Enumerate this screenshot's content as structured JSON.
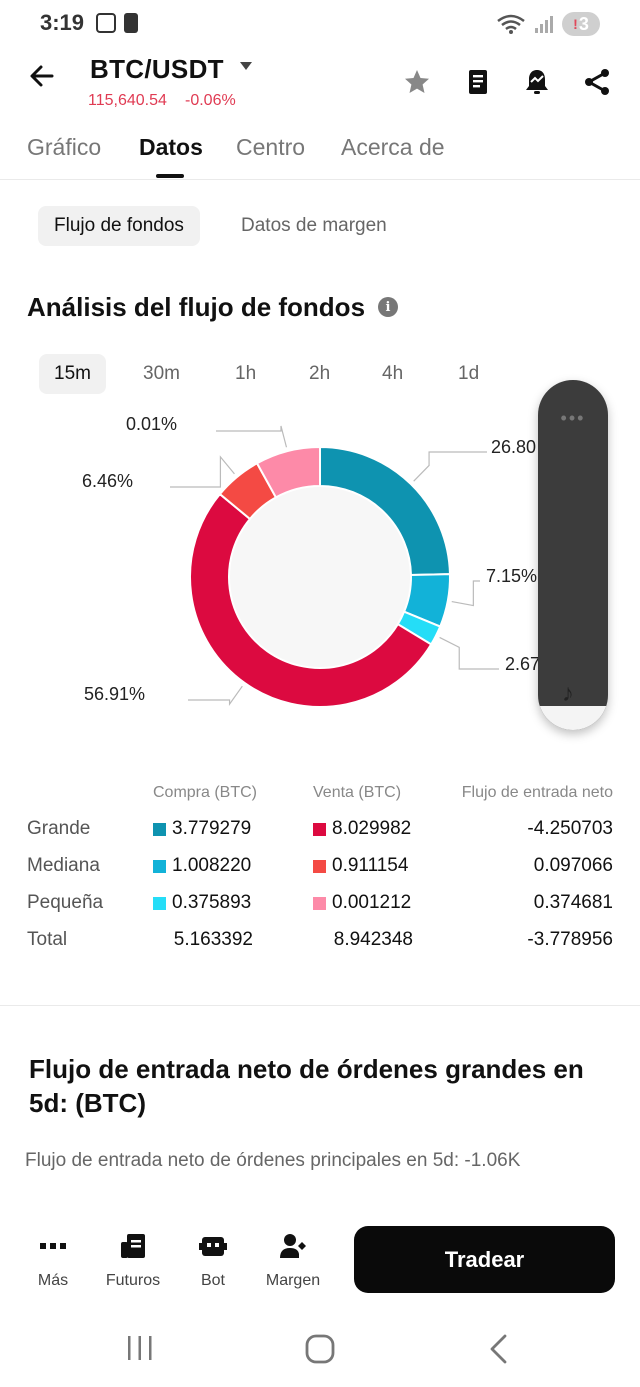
{
  "status_bar": {
    "time": "3:19",
    "notification_count": "3"
  },
  "header": {
    "pair": "BTC/USDT",
    "price": "115,640.54",
    "change": "-0.06%",
    "icons": [
      "back-arrow-icon",
      "star-icon",
      "notebook-icon",
      "price-alert-bell-icon",
      "share-icon"
    ]
  },
  "tabs": [
    {
      "label": "Gráfico",
      "active": false
    },
    {
      "label": "Datos",
      "active": true
    },
    {
      "label": "Centro",
      "active": false
    },
    {
      "label": "Acerca de",
      "active": false
    }
  ],
  "subtabs": [
    {
      "label": "Flujo de fondos",
      "active": true
    },
    {
      "label": "Datos de margen",
      "active": false
    }
  ],
  "analysis": {
    "title": "Análisis del flujo de fondos",
    "intervals": [
      {
        "label": "15m",
        "active": true
      },
      {
        "label": "30m",
        "active": false
      },
      {
        "label": "1h",
        "active": false
      },
      {
        "label": "2h",
        "active": false
      },
      {
        "label": "4h",
        "active": false
      },
      {
        "label": "1d",
        "active": false
      }
    ]
  },
  "chart_data": {
    "type": "pie",
    "slices": [
      {
        "label": "26.80",
        "value": 26.8,
        "color": "#0e93b0"
      },
      {
        "label": "7.15%",
        "value": 7.15,
        "color": "#12b2d8"
      },
      {
        "label": "2.67",
        "value": 2.67,
        "color": "#25ddf7"
      },
      {
        "label": "56.91%",
        "value": 56.91,
        "color": "#dc0a40"
      },
      {
        "label": "6.46%",
        "value": 6.46,
        "color": "#f44a44"
      },
      {
        "label": "0.01%",
        "value": 0.01,
        "color": "#fd8aa8"
      }
    ]
  },
  "table": {
    "headers": {
      "buy": "Compra (BTC)",
      "sell": "Venta (BTC)",
      "net": "Flujo de entrada neto"
    },
    "rows": [
      {
        "label": "Grande",
        "buy": "3.779279",
        "buy_color": "#0e93b0",
        "sell": "8.029982",
        "sell_color": "#dc0a40",
        "net": "-4.250703"
      },
      {
        "label": "Mediana",
        "buy": "1.008220",
        "buy_color": "#12b2d8",
        "sell": "0.911154",
        "sell_color": "#f44a44",
        "net": "0.097066"
      },
      {
        "label": "Pequeña",
        "buy": "0.375893",
        "buy_color": "#25ddf7",
        "sell": "0.001212",
        "sell_color": "#fd8aa8",
        "net": "0.374681"
      },
      {
        "label": "Total",
        "buy": "5.163392",
        "sell": "8.942348",
        "net": "-3.778956"
      }
    ]
  },
  "large_orders": {
    "title": "Flujo de entrada neto de órdenes grandes en 5d: (BTC)",
    "subtitle": "Flujo de entrada neto de órdenes principales en 5d: -1.06K"
  },
  "bottom_nav": {
    "items": [
      {
        "label": "Más",
        "icon": "more-dots-icon"
      },
      {
        "label": "Futuros",
        "icon": "futures-icon"
      },
      {
        "label": "Bot",
        "icon": "bot-icon"
      },
      {
        "label": "Margen",
        "icon": "margin-icon"
      }
    ],
    "trade_label": "Tradear"
  }
}
